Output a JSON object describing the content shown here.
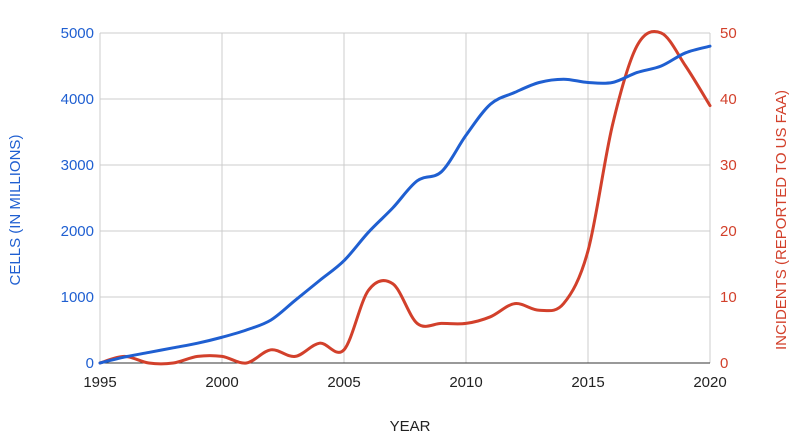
{
  "chart_data": {
    "type": "line",
    "xlabel": "YEAR",
    "ylabel_left": "CELLS (IN MILLIONS)",
    "ylabel_right": "INCIDENTS (REPORTED TO US FAA)",
    "xlim": [
      1995,
      2020
    ],
    "ylim_left": [
      0,
      5000
    ],
    "ylim_right": [
      0,
      50
    ],
    "x_ticks": [
      "1995",
      "2000",
      "2005",
      "2010",
      "2015",
      "2020"
    ],
    "y_left_ticks": [
      "0",
      "1000",
      "2000",
      "3000",
      "4000",
      "5000"
    ],
    "y_right_ticks": [
      "0",
      "10",
      "20",
      "30",
      "40",
      "50"
    ],
    "grid": true,
    "legend": "none",
    "colors": {
      "cells": "#1f5fd1",
      "incidents": "#d2402b"
    },
    "series": [
      {
        "axis": "left",
        "x": [
          1995,
          1996,
          1997,
          1998,
          1999,
          2000,
          2001,
          2002,
          2003,
          2004,
          2005,
          2006,
          2007,
          2008,
          2009,
          2010,
          2011,
          2012,
          2013,
          2014,
          2015,
          2016,
          2017,
          2018,
          2019,
          2020
        ],
        "values": [
          0,
          90,
          160,
          230,
          300,
          390,
          500,
          650,
          950,
          1250,
          1550,
          1980,
          2350,
          2760,
          2900,
          3450,
          3920,
          4100,
          4250,
          4300,
          4250,
          4250,
          4400,
          4500,
          4700,
          4800
        ]
      },
      {
        "axis": "right",
        "x": [
          1995,
          1996,
          1997,
          1998,
          1999,
          2000,
          2001,
          2002,
          2003,
          2004,
          2005,
          2006,
          2007,
          2008,
          2009,
          2010,
          2011,
          2012,
          2013,
          2014,
          2015,
          2016,
          2017,
          2018,
          2019,
          2020
        ],
        "values": [
          0,
          1,
          0,
          0,
          1,
          1,
          0,
          2,
          1,
          3,
          2,
          11,
          12,
          6,
          6,
          6,
          7,
          9,
          8,
          9,
          17,
          36,
          48,
          50,
          45,
          39
        ]
      }
    ]
  }
}
